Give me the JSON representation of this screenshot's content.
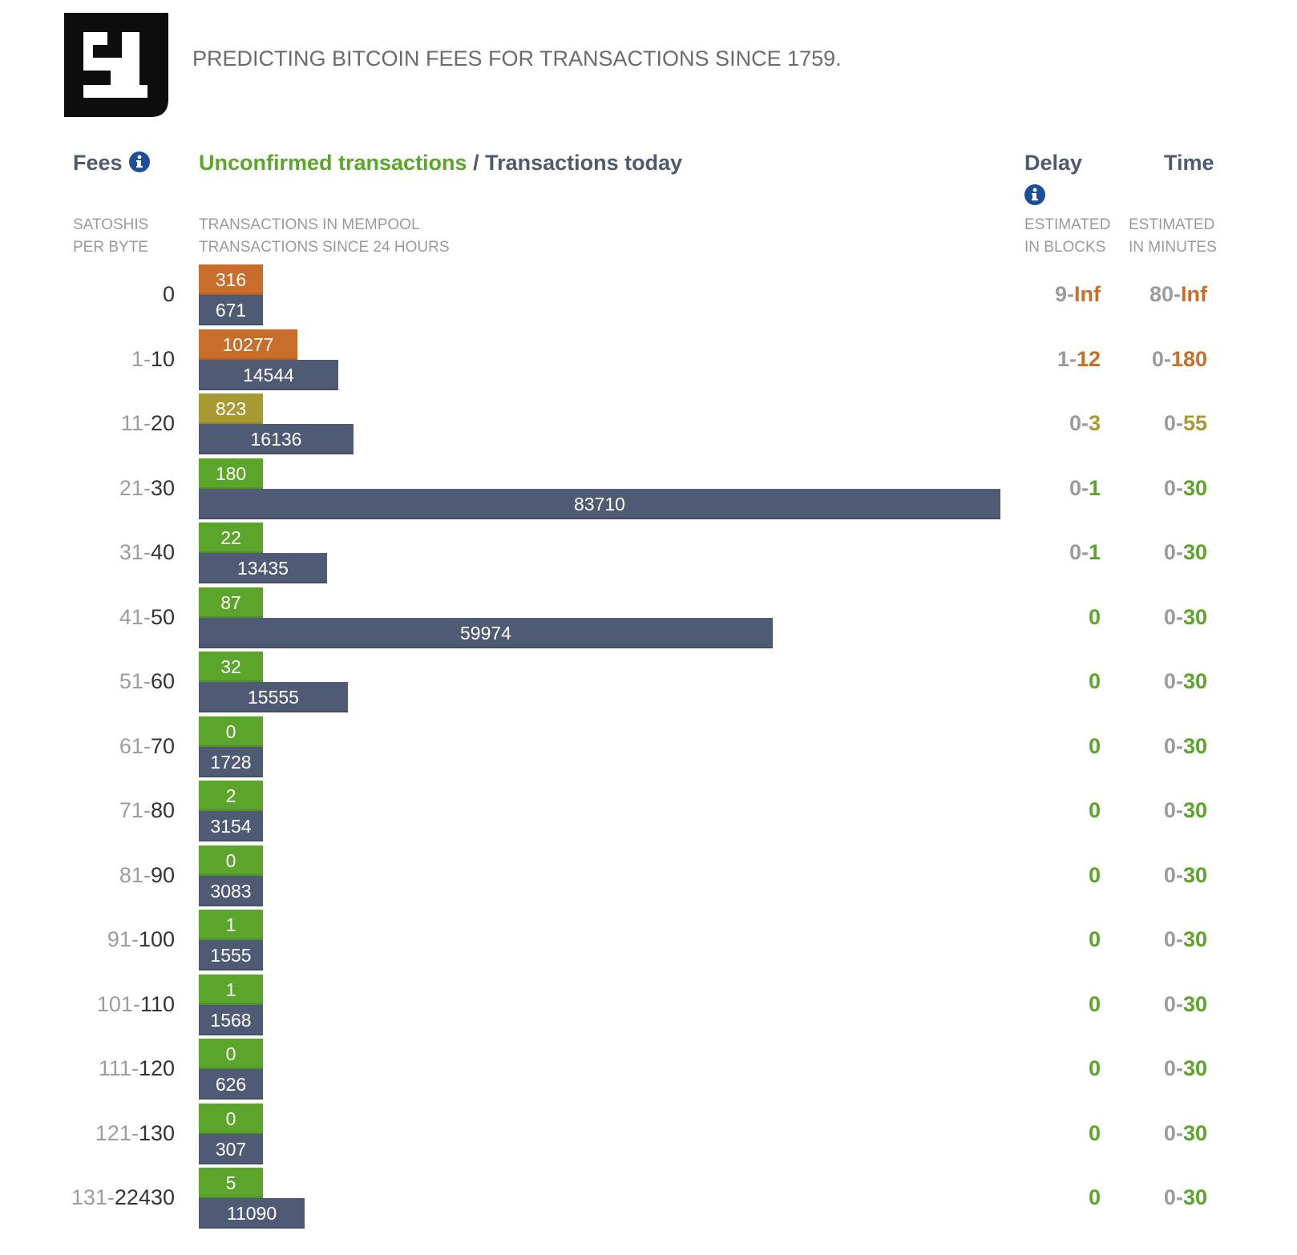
{
  "header": {
    "tagline": "PREDICTING BITCOIN FEES FOR TRANSACTIONS SINCE 1759."
  },
  "columns": {
    "fees_title": "Fees",
    "unconfirmed_title": "Unconfirmed transactions",
    "separator": " / ",
    "today_title": "Transactions today",
    "delay_title": "Delay",
    "time_title": "Time",
    "fees_sub": [
      "SATOSHIS",
      "PER BYTE"
    ],
    "tx_sub": [
      "TRANSACTIONS IN MEMPOOL",
      "TRANSACTIONS SINCE 24 HOURS"
    ],
    "delay_sub": [
      "ESTIMATED",
      "IN BLOCKS"
    ],
    "time_sub": [
      "ESTIMATED",
      "IN MINUTES"
    ]
  },
  "colors": {
    "orange": "#c96e2a",
    "olive": "#a89a32",
    "green": "#5aa52a",
    "slate": "#4f5b74",
    "gray": "#9c9c9c",
    "info_blue": "#1c4f97"
  },
  "rows": [
    {
      "fee_lo": "0",
      "fee_hi": "",
      "mempool": 316,
      "today": 671,
      "delay_lo": "9",
      "delay_hi": "Inf",
      "time_lo": "80",
      "time_hi": "Inf",
      "color": "orange"
    },
    {
      "fee_lo": "1",
      "fee_hi": "10",
      "mempool": 10277,
      "today": 14544,
      "delay_lo": "1",
      "delay_hi": "12",
      "time_lo": "0",
      "time_hi": "180",
      "color": "orange"
    },
    {
      "fee_lo": "11",
      "fee_hi": "20",
      "mempool": 823,
      "today": 16136,
      "delay_lo": "0",
      "delay_hi": "3",
      "time_lo": "0",
      "time_hi": "55",
      "color": "olive"
    },
    {
      "fee_lo": "21",
      "fee_hi": "30",
      "mempool": 180,
      "today": 83710,
      "delay_lo": "0",
      "delay_hi": "1",
      "time_lo": "0",
      "time_hi": "30",
      "color": "green"
    },
    {
      "fee_lo": "31",
      "fee_hi": "40",
      "mempool": 22,
      "today": 13435,
      "delay_lo": "0",
      "delay_hi": "1",
      "time_lo": "0",
      "time_hi": "30",
      "color": "green"
    },
    {
      "fee_lo": "41",
      "fee_hi": "50",
      "mempool": 87,
      "today": 59974,
      "delay_lo": "",
      "delay_hi": "0",
      "time_lo": "0",
      "time_hi": "30",
      "color": "green"
    },
    {
      "fee_lo": "51",
      "fee_hi": "60",
      "mempool": 32,
      "today": 15555,
      "delay_lo": "",
      "delay_hi": "0",
      "time_lo": "0",
      "time_hi": "30",
      "color": "green"
    },
    {
      "fee_lo": "61",
      "fee_hi": "70",
      "mempool": 0,
      "today": 1728,
      "delay_lo": "",
      "delay_hi": "0",
      "time_lo": "0",
      "time_hi": "30",
      "color": "green"
    },
    {
      "fee_lo": "71",
      "fee_hi": "80",
      "mempool": 2,
      "today": 3154,
      "delay_lo": "",
      "delay_hi": "0",
      "time_lo": "0",
      "time_hi": "30",
      "color": "green"
    },
    {
      "fee_lo": "81",
      "fee_hi": "90",
      "mempool": 0,
      "today": 3083,
      "delay_lo": "",
      "delay_hi": "0",
      "time_lo": "0",
      "time_hi": "30",
      "color": "green"
    },
    {
      "fee_lo": "91",
      "fee_hi": "100",
      "mempool": 1,
      "today": 1555,
      "delay_lo": "",
      "delay_hi": "0",
      "time_lo": "0",
      "time_hi": "30",
      "color": "green"
    },
    {
      "fee_lo": "101",
      "fee_hi": "110",
      "mempool": 1,
      "today": 1568,
      "delay_lo": "",
      "delay_hi": "0",
      "time_lo": "0",
      "time_hi": "30",
      "color": "green"
    },
    {
      "fee_lo": "111",
      "fee_hi": "120",
      "mempool": 0,
      "today": 626,
      "delay_lo": "",
      "delay_hi": "0",
      "time_lo": "0",
      "time_hi": "30",
      "color": "green"
    },
    {
      "fee_lo": "121",
      "fee_hi": "130",
      "mempool": 0,
      "today": 307,
      "delay_lo": "",
      "delay_hi": "0",
      "time_lo": "0",
      "time_hi": "30",
      "color": "green"
    },
    {
      "fee_lo": "131",
      "fee_hi": "22430",
      "mempool": 5,
      "today": 11090,
      "delay_lo": "",
      "delay_hi": "0",
      "time_lo": "0",
      "time_hi": "30",
      "color": "green"
    }
  ]
}
